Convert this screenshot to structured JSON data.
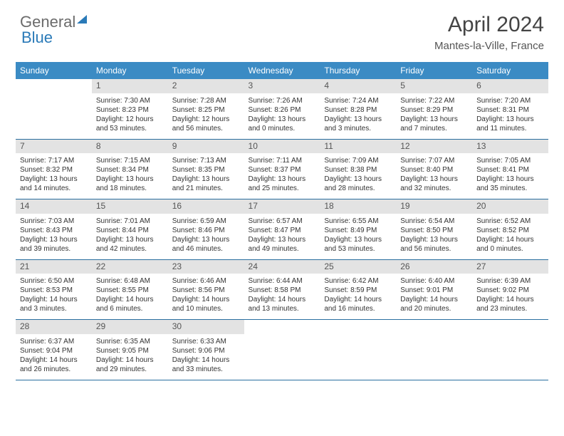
{
  "brand": {
    "part1": "General",
    "part2": "Blue"
  },
  "title": "April 2024",
  "location": "Mantes-la-Ville, France",
  "colors": {
    "header_bg": "#3b8bc4",
    "daynum_bg": "#e3e3e3",
    "week_border": "#2a6fa0",
    "logo_gray": "#6b6b6b",
    "logo_blue": "#2a7ab8"
  },
  "dow": [
    "Sunday",
    "Monday",
    "Tuesday",
    "Wednesday",
    "Thursday",
    "Friday",
    "Saturday"
  ],
  "weeks": [
    [
      {
        "n": "",
        "sr": "",
        "ss": "",
        "d1": "",
        "d2": ""
      },
      {
        "n": "1",
        "sr": "Sunrise: 7:30 AM",
        "ss": "Sunset: 8:23 PM",
        "d1": "Daylight: 12 hours",
        "d2": "and 53 minutes."
      },
      {
        "n": "2",
        "sr": "Sunrise: 7:28 AM",
        "ss": "Sunset: 8:25 PM",
        "d1": "Daylight: 12 hours",
        "d2": "and 56 minutes."
      },
      {
        "n": "3",
        "sr": "Sunrise: 7:26 AM",
        "ss": "Sunset: 8:26 PM",
        "d1": "Daylight: 13 hours",
        "d2": "and 0 minutes."
      },
      {
        "n": "4",
        "sr": "Sunrise: 7:24 AM",
        "ss": "Sunset: 8:28 PM",
        "d1": "Daylight: 13 hours",
        "d2": "and 3 minutes."
      },
      {
        "n": "5",
        "sr": "Sunrise: 7:22 AM",
        "ss": "Sunset: 8:29 PM",
        "d1": "Daylight: 13 hours",
        "d2": "and 7 minutes."
      },
      {
        "n": "6",
        "sr": "Sunrise: 7:20 AM",
        "ss": "Sunset: 8:31 PM",
        "d1": "Daylight: 13 hours",
        "d2": "and 11 minutes."
      }
    ],
    [
      {
        "n": "7",
        "sr": "Sunrise: 7:17 AM",
        "ss": "Sunset: 8:32 PM",
        "d1": "Daylight: 13 hours",
        "d2": "and 14 minutes."
      },
      {
        "n": "8",
        "sr": "Sunrise: 7:15 AM",
        "ss": "Sunset: 8:34 PM",
        "d1": "Daylight: 13 hours",
        "d2": "and 18 minutes."
      },
      {
        "n": "9",
        "sr": "Sunrise: 7:13 AM",
        "ss": "Sunset: 8:35 PM",
        "d1": "Daylight: 13 hours",
        "d2": "and 21 minutes."
      },
      {
        "n": "10",
        "sr": "Sunrise: 7:11 AM",
        "ss": "Sunset: 8:37 PM",
        "d1": "Daylight: 13 hours",
        "d2": "and 25 minutes."
      },
      {
        "n": "11",
        "sr": "Sunrise: 7:09 AM",
        "ss": "Sunset: 8:38 PM",
        "d1": "Daylight: 13 hours",
        "d2": "and 28 minutes."
      },
      {
        "n": "12",
        "sr": "Sunrise: 7:07 AM",
        "ss": "Sunset: 8:40 PM",
        "d1": "Daylight: 13 hours",
        "d2": "and 32 minutes."
      },
      {
        "n": "13",
        "sr": "Sunrise: 7:05 AM",
        "ss": "Sunset: 8:41 PM",
        "d1": "Daylight: 13 hours",
        "d2": "and 35 minutes."
      }
    ],
    [
      {
        "n": "14",
        "sr": "Sunrise: 7:03 AM",
        "ss": "Sunset: 8:43 PM",
        "d1": "Daylight: 13 hours",
        "d2": "and 39 minutes."
      },
      {
        "n": "15",
        "sr": "Sunrise: 7:01 AM",
        "ss": "Sunset: 8:44 PM",
        "d1": "Daylight: 13 hours",
        "d2": "and 42 minutes."
      },
      {
        "n": "16",
        "sr": "Sunrise: 6:59 AM",
        "ss": "Sunset: 8:46 PM",
        "d1": "Daylight: 13 hours",
        "d2": "and 46 minutes."
      },
      {
        "n": "17",
        "sr": "Sunrise: 6:57 AM",
        "ss": "Sunset: 8:47 PM",
        "d1": "Daylight: 13 hours",
        "d2": "and 49 minutes."
      },
      {
        "n": "18",
        "sr": "Sunrise: 6:55 AM",
        "ss": "Sunset: 8:49 PM",
        "d1": "Daylight: 13 hours",
        "d2": "and 53 minutes."
      },
      {
        "n": "19",
        "sr": "Sunrise: 6:54 AM",
        "ss": "Sunset: 8:50 PM",
        "d1": "Daylight: 13 hours",
        "d2": "and 56 minutes."
      },
      {
        "n": "20",
        "sr": "Sunrise: 6:52 AM",
        "ss": "Sunset: 8:52 PM",
        "d1": "Daylight: 14 hours",
        "d2": "and 0 minutes."
      }
    ],
    [
      {
        "n": "21",
        "sr": "Sunrise: 6:50 AM",
        "ss": "Sunset: 8:53 PM",
        "d1": "Daylight: 14 hours",
        "d2": "and 3 minutes."
      },
      {
        "n": "22",
        "sr": "Sunrise: 6:48 AM",
        "ss": "Sunset: 8:55 PM",
        "d1": "Daylight: 14 hours",
        "d2": "and 6 minutes."
      },
      {
        "n": "23",
        "sr": "Sunrise: 6:46 AM",
        "ss": "Sunset: 8:56 PM",
        "d1": "Daylight: 14 hours",
        "d2": "and 10 minutes."
      },
      {
        "n": "24",
        "sr": "Sunrise: 6:44 AM",
        "ss": "Sunset: 8:58 PM",
        "d1": "Daylight: 14 hours",
        "d2": "and 13 minutes."
      },
      {
        "n": "25",
        "sr": "Sunrise: 6:42 AM",
        "ss": "Sunset: 8:59 PM",
        "d1": "Daylight: 14 hours",
        "d2": "and 16 minutes."
      },
      {
        "n": "26",
        "sr": "Sunrise: 6:40 AM",
        "ss": "Sunset: 9:01 PM",
        "d1": "Daylight: 14 hours",
        "d2": "and 20 minutes."
      },
      {
        "n": "27",
        "sr": "Sunrise: 6:39 AM",
        "ss": "Sunset: 9:02 PM",
        "d1": "Daylight: 14 hours",
        "d2": "and 23 minutes."
      }
    ],
    [
      {
        "n": "28",
        "sr": "Sunrise: 6:37 AM",
        "ss": "Sunset: 9:04 PM",
        "d1": "Daylight: 14 hours",
        "d2": "and 26 minutes."
      },
      {
        "n": "29",
        "sr": "Sunrise: 6:35 AM",
        "ss": "Sunset: 9:05 PM",
        "d1": "Daylight: 14 hours",
        "d2": "and 29 minutes."
      },
      {
        "n": "30",
        "sr": "Sunrise: 6:33 AM",
        "ss": "Sunset: 9:06 PM",
        "d1": "Daylight: 14 hours",
        "d2": "and 33 minutes."
      },
      {
        "n": "",
        "sr": "",
        "ss": "",
        "d1": "",
        "d2": ""
      },
      {
        "n": "",
        "sr": "",
        "ss": "",
        "d1": "",
        "d2": ""
      },
      {
        "n": "",
        "sr": "",
        "ss": "",
        "d1": "",
        "d2": ""
      },
      {
        "n": "",
        "sr": "",
        "ss": "",
        "d1": "",
        "d2": ""
      }
    ]
  ]
}
